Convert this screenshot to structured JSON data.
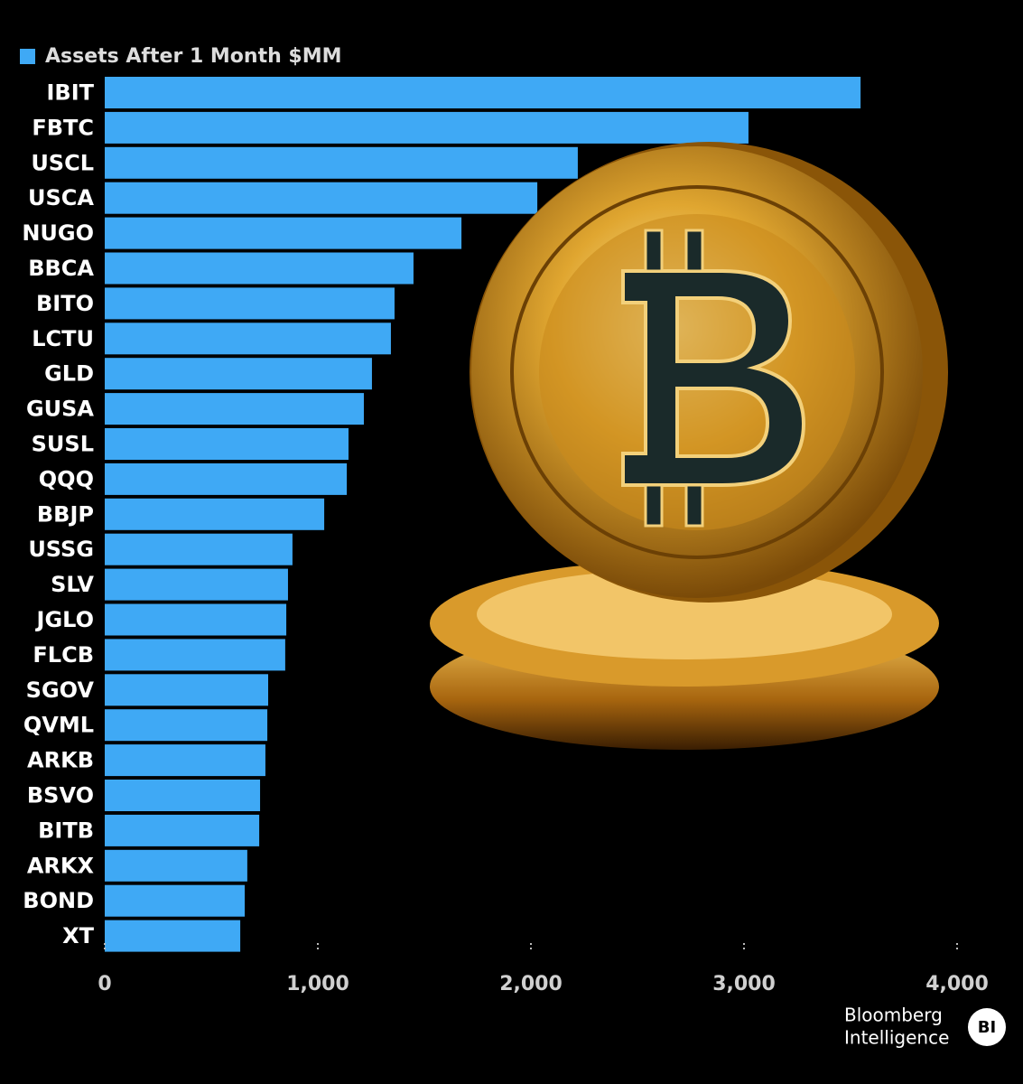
{
  "chart_data": {
    "type": "hbar",
    "categories": [
      "IBIT",
      "FBTC",
      "USCL",
      "USCA",
      "NUGO",
      "BBCA",
      "BITO",
      "LCTU",
      "GLD",
      "GUSA",
      "SUSL",
      "QQQ",
      "BBJP",
      "USSG",
      "SLV",
      "JGLO",
      "FLCB",
      "SGOV",
      "QVML",
      "ARKB",
      "BSVO",
      "BITB",
      "ARKX",
      "BOND",
      "XT"
    ],
    "series": [
      {
        "name": "Assets After 1 Month $MM",
        "color": "#3fa9f5",
        "values": [
          3547,
          3021,
          2220,
          2030,
          1674,
          1449,
          1360,
          1343,
          1254,
          1216,
          1144,
          1136,
          1030,
          881,
          860,
          852,
          847,
          767,
          763,
          754,
          729,
          725,
          669,
          657,
          636
        ]
      }
    ],
    "xlim": [
      0,
      4000
    ],
    "xticks": [
      0,
      {
        "value": 1000,
        "label": "1,000"
      },
      {
        "value": 2000,
        "label": "2,000"
      },
      {
        "value": 3000,
        "label": "3,000"
      },
      {
        "value": 4000,
        "label": "4,000"
      }
    ],
    "source": [
      "Bloomberg",
      "Intelligence"
    ],
    "source_badge": "BI"
  }
}
